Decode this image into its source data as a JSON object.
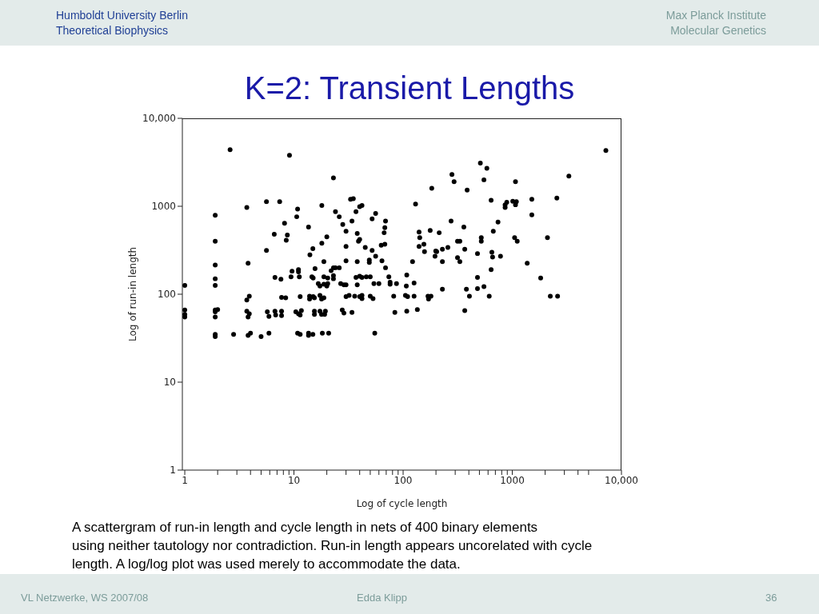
{
  "chart_data": {
    "type": "scatter",
    "title": "K=2: Transient Lengths",
    "xlabel": "Log of cycle length",
    "ylabel": "Log of run-in length",
    "log": "xy",
    "marker": "circle",
    "color": "#000000",
    "xlim": [
      0.95,
      10000
    ],
    "ylim": [
      1,
      10000
    ],
    "xticks": [
      1,
      {
        "value": 2,
        "label": null
      },
      {
        "value": 3,
        "label": null
      },
      {
        "value": 4,
        "label": null
      },
      {
        "value": 5,
        "label": null
      },
      {
        "value": 6,
        "label": null
      },
      {
        "value": 7,
        "label": null
      },
      {
        "value": 8,
        "label": null
      },
      {
        "value": 9,
        "label": null
      },
      10,
      {
        "value": 20,
        "label": null
      },
      {
        "value": 30,
        "label": null
      },
      {
        "value": 40,
        "label": null
      },
      {
        "value": 50,
        "label": null
      },
      {
        "value": 60,
        "label": null
      },
      {
        "value": 70,
        "label": null
      },
      {
        "value": 80,
        "label": null
      },
      {
        "value": 90,
        "label": null
      },
      100,
      {
        "value": 200,
        "label": null
      },
      {
        "value": 300,
        "label": null
      },
      {
        "value": 400,
        "label": null
      },
      {
        "value": 500,
        "label": null
      },
      {
        "value": 600,
        "label": null
      },
      {
        "value": 700,
        "label": null
      },
      {
        "value": 800,
        "label": null
      },
      {
        "value": 900,
        "label": null
      },
      1000,
      {
        "value": 2000,
        "label": null
      },
      {
        "value": 3000,
        "label": null
      },
      {
        "value": 4000,
        "label": null
      },
      {
        "value": 5000,
        "label": null
      },
      {
        "value": 10000,
        "label": "10,000"
      }
    ],
    "yticks": [
      1,
      10,
      100,
      1000,
      {
        "value": 10000,
        "label": "10,000"
      }
    ],
    "x": [
      510,
      585,
      280,
      293,
      550,
      1070,
      3300,
      183,
      386,
      7200,
      130,
      640,
      890,
      860,
      860,
      1010,
      1090,
      1070,
      1510,
      2560,
      1510,
      275,
      740,
      360,
      140,
      177,
      214,
      670,
      142,
      520,
      1050,
      2100,
      315,
      331,
      520,
      1110,
      140,
      155,
      229,
      257,
      199,
      157,
      367,
      650,
      480,
      2.6,
      9.1,
      23,
      33,
      35,
      18,
      40,
      42,
      5.6,
      7.4,
      3.7,
      10.8,
      1.9,
      10.6,
      24,
      26,
      37,
      56,
      52,
      34,
      69,
      8.2,
      28,
      68,
      13.6,
      30,
      38,
      67,
      6.6,
      8.7,
      20,
      8.5,
      40,
      39,
      1.9,
      18,
      30,
      63,
      68,
      45,
      52,
      5.6,
      14.9,
      14,
      1.9,
      3.8,
      1,
      1.9,
      1.9,
      18.8,
      30,
      38,
      49,
      49,
      56,
      64,
      69,
      15.6,
      9.6,
      11,
      11,
      21.9,
      23,
      24,
      26,
      6.7,
      7.6,
      9.4,
      11.2,
      14.6,
      15,
      18.8,
      20.4,
      23,
      23,
      37,
      40,
      42,
      46,
      50,
      74,
      16.7,
      17.3,
      18.8,
      20.4,
      20,
      26.8,
      28.7,
      30,
      38,
      54,
      60,
      76,
      76,
      87,
      3.7,
      3.9,
      7.7,
      8.4,
      11.4,
      13.9,
      13.9,
      15,
      15.4,
      17.3,
      17.9,
      18.8,
      30,
      32,
      36,
      40,
      42,
      42,
      50,
      53,
      82,
      1,
      1,
      1,
      1.9,
      1.9,
      1.9,
      2,
      3.7,
      3.9,
      3.8,
      5.7,
      5.9,
      6.7,
      6.8,
      7.7,
      7.7,
      10.4,
      11,
      11.7,
      11.4,
      15.4,
      15.4,
      17.3,
      17.9,
      19.4,
      19.1,
      27.7,
      28.7,
      34,
      84,
      1.9,
      1.9,
      2.8,
      3.8,
      4,
      5,
      5.9,
      10.8,
      11.4,
      13.6,
      13.6,
      14.9,
      18.2,
      20.8,
      55,
      203,
      196,
      315,
      331,
      660,
      780,
      122,
      229,
      1370,
      640,
      108,
      480,
      1820,
      107,
      126,
      229,
      380,
      480,
      550,
      105,
      110,
      126,
      169,
      180,
      171,
      405,
      615,
      2230,
      2600,
      108,
      135,
      367
    ],
    "values": [
      3100,
      2700,
      2300,
      1900,
      2000,
      1900,
      2200,
      1600,
      1530,
      4300,
      1060,
      1170,
      1110,
      1040,
      970,
      1140,
      1130,
      1040,
      1200,
      1240,
      800,
      680,
      660,
      580,
      510,
      530,
      500,
      520,
      440,
      440,
      440,
      440,
      400,
      400,
      400,
      400,
      350,
      370,
      325,
      340,
      310,
      305,
      325,
      300,
      290,
      4400,
      3800,
      2100,
      1200,
      1220,
      1020,
      990,
      1020,
      1130,
      1130,
      970,
      930,
      790,
      760,
      870,
      760,
      870,
      830,
      720,
      680,
      680,
      640,
      620,
      570,
      580,
      520,
      490,
      500,
      480,
      470,
      450,
      410,
      420,
      400,
      400,
      380,
      350,
      360,
      370,
      340,
      315,
      315,
      330,
      280,
      215,
      225,
      126,
      150,
      126,
      235,
      240,
      235,
      245,
      230,
      270,
      240,
      200,
      195,
      183,
      190,
      180,
      185,
      200,
      200,
      200,
      155,
      148,
      158,
      158,
      158,
      153,
      158,
      153,
      163,
      150,
      155,
      160,
      155,
      158,
      158,
      158,
      132,
      124,
      130,
      132,
      124,
      132,
      128,
      128,
      128,
      132,
      132,
      137,
      130,
      132,
      86,
      95,
      92,
      91,
      94,
      95,
      88,
      94,
      91,
      97,
      88,
      91,
      94,
      97,
      95,
      94,
      97,
      89,
      95,
      89,
      95,
      66,
      59,
      55,
      66,
      63,
      55,
      67,
      64,
      60,
      55,
      63,
      56,
      64,
      58,
      64,
      57,
      63,
      60,
      65,
      58,
      64,
      59,
      64,
      59,
      64,
      59,
      66,
      61,
      62,
      62,
      35,
      33,
      35,
      34,
      36,
      33,
      36,
      36,
      35,
      36,
      34,
      35,
      36,
      36,
      36,
      305,
      270,
      260,
      235,
      265,
      270,
      235,
      235,
      225,
      190,
      165,
      155,
      153,
      124,
      134,
      114,
      114,
      116,
      122,
      97,
      94,
      95,
      95,
      95,
      88,
      95,
      95,
      95,
      95,
      64,
      67,
      65
    ],
    "annotations": [
      "Humboldt University Berlin",
      "Theoretical Biophysics",
      "Max Planck Institute",
      "Molecular Genetics",
      "A scattergram of run-in length and cycle length in nets of 400 binary elements\nusing neither tautology nor contradiction. Run-in length appears uncorelated with cycle\nlength. A log/log plot was used merely to accommodate the data.",
      "VL Netzwerke, WS 2007/08",
      "Edda Klipp",
      "36"
    ]
  }
}
